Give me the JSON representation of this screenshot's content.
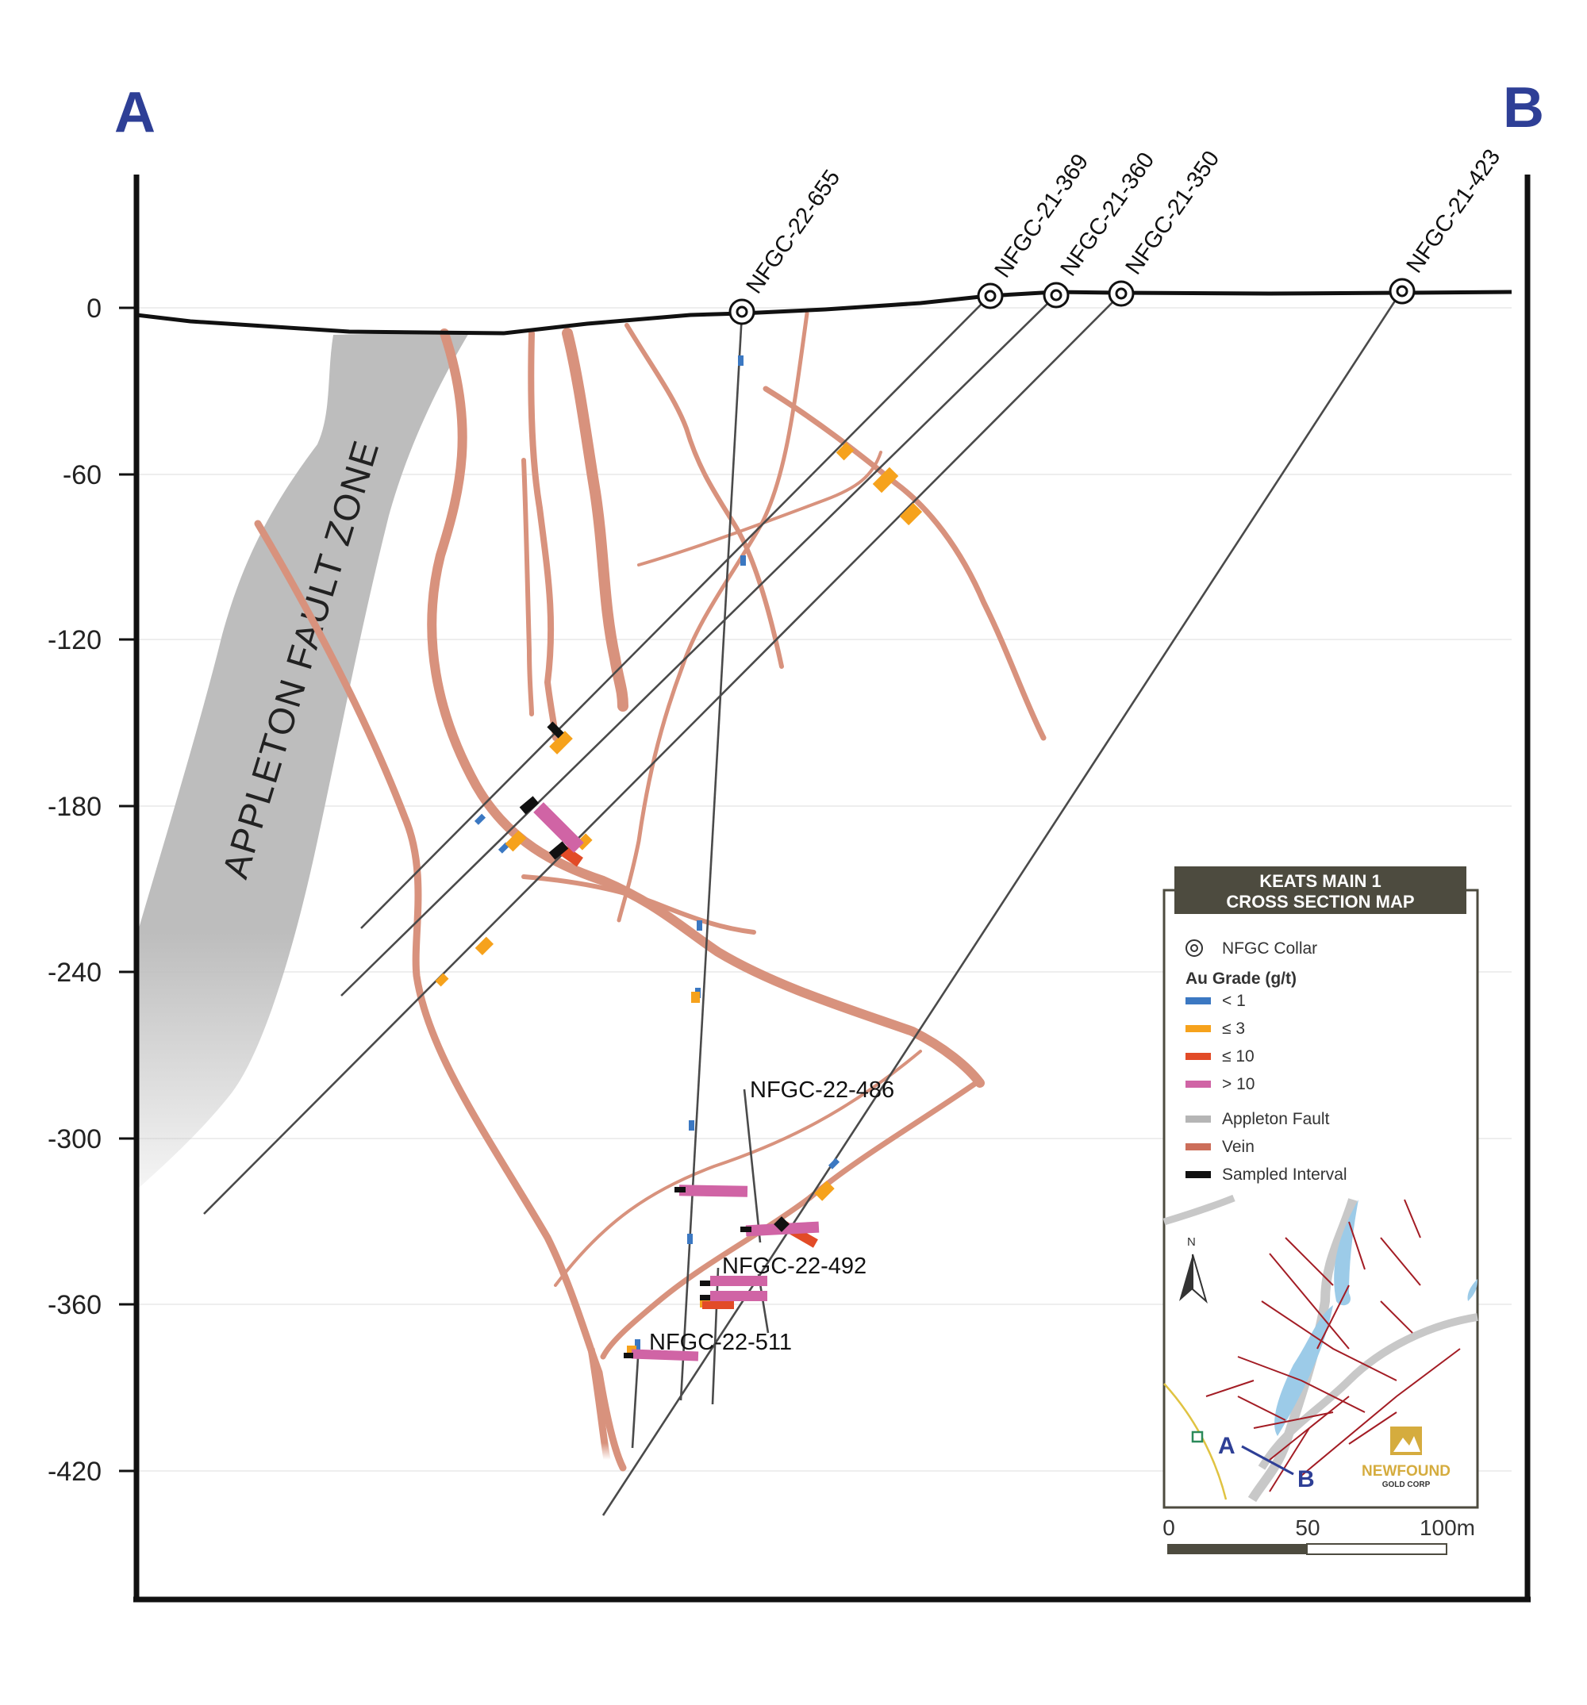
{
  "section": {
    "end_a": "A",
    "end_b": "B",
    "y_ticks": [
      "0",
      "-60",
      "-120",
      "-180",
      "-240",
      "-300",
      "-360",
      "-420"
    ],
    "fault_label": "APPLETON FAULT ZONE"
  },
  "drill_holes": [
    {
      "id": "NFGC-22-655",
      "collar": true
    },
    {
      "id": "NFGC-21-369",
      "collar": true
    },
    {
      "id": "NFGC-21-360",
      "collar": true
    },
    {
      "id": "NFGC-21-350",
      "collar": true
    },
    {
      "id": "NFGC-21-423",
      "collar": true
    },
    {
      "id": "NFGC-22-486",
      "collar": false
    },
    {
      "id": "NFGC-22-492",
      "collar": false
    },
    {
      "id": "NFGC-22-511",
      "collar": false
    }
  ],
  "legend": {
    "title_line1": "KEATS MAIN 1",
    "title_line2": "CROSS SECTION MAP",
    "collar_label": "NFGC Collar",
    "grade_header": "Au Grade (g/t)",
    "grades": [
      {
        "label": "< 1",
        "color": "#3b78c2"
      },
      {
        "label": "≤ 3",
        "color": "#f6a21c"
      },
      {
        "label": "≤ 10",
        "color": "#e24b27"
      },
      {
        "label": "> 10",
        "color": "#d064a5"
      }
    ],
    "features": [
      {
        "label": "Appleton Fault",
        "color": "#b5b5b5"
      },
      {
        "label": "Vein",
        "color": "#cc6e5a"
      },
      {
        "label": "Sampled Interval",
        "color": "#111111"
      }
    ],
    "north": "N",
    "map_a": "A",
    "map_b": "B",
    "logo_line1": "NEWFOUND",
    "logo_line2": "GOLD CORP"
  },
  "scale_bar": {
    "labels": [
      "0",
      "50",
      "100m"
    ]
  },
  "colors": {
    "fault": "#bdbdbd",
    "vein": "#d8927d",
    "hole": "#4a4a4a",
    "accent": "#2e3f96",
    "legend_title_bg": "#4d4b3f"
  }
}
